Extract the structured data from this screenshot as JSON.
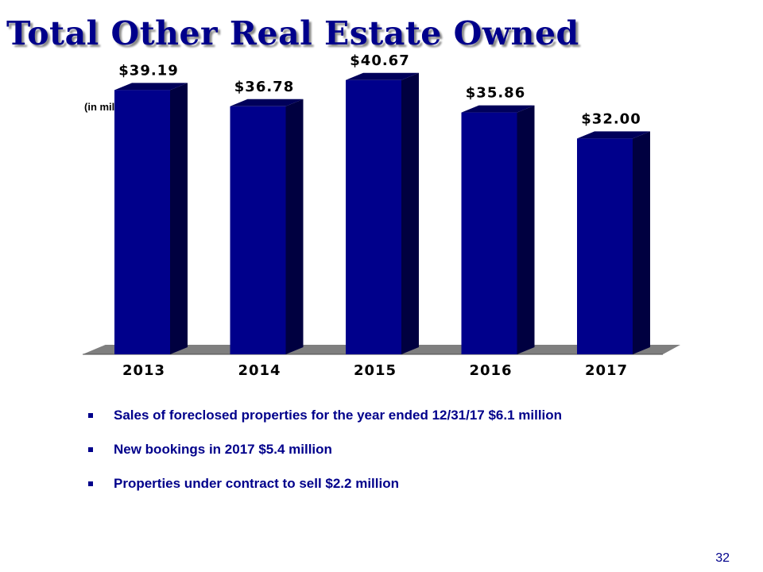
{
  "slide": {
    "title": "Total Other Real Estate Owned",
    "units_note": "(in millions)",
    "page_number": "32"
  },
  "chart_data": {
    "type": "bar",
    "title": "",
    "xlabel": "",
    "ylabel": "",
    "categories": [
      "2013",
      "2014",
      "2015",
      "2016",
      "2017"
    ],
    "values": [
      39.19,
      36.78,
      40.67,
      35.86,
      32.0
    ],
    "data_labels": [
      "$39.19",
      "$36.78",
      "$40.67",
      "$35.86",
      "$32.00"
    ],
    "ylim": [
      0,
      45
    ],
    "grid": false,
    "legend": "none",
    "style": "3d",
    "colors": {
      "bar_front": "#00008b",
      "bar_side": "#000040",
      "bar_top": "#00005a",
      "floor": "#7f7f7f"
    }
  },
  "bullets": [
    "Sales of foreclosed properties for the year ended 12/31/17 $6.1 million",
    "New bookings in 2017 $5.4 million",
    "Properties under contract to sell $2.2 million"
  ],
  "icons": {
    "bullet": "square-bullet-icon"
  }
}
